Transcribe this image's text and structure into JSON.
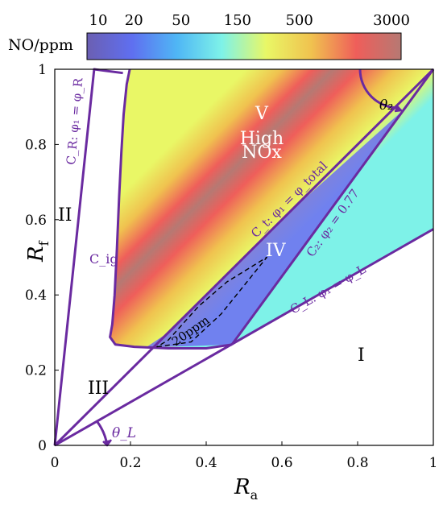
{
  "colors": {
    "boundary": "#6a2aa0",
    "colormap": [
      "#6b5fb2",
      "#5f6ff0",
      "#4fb6f5",
      "#7ef2e8",
      "#e9f766",
      "#f0c24f",
      "#ef5e5a",
      "#b67973"
    ]
  },
  "colorbar": {
    "label": "NO/ppm",
    "ticks": [
      10,
      20,
      50,
      150,
      500,
      3000
    ],
    "scale": "log"
  },
  "chart_data": {
    "type": "heatmap",
    "xlabel": "R",
    "xlabel_sub": "a",
    "ylabel": "R",
    "ylabel_sub": "f",
    "xlim": [
      0,
      1
    ],
    "ylim": [
      0,
      1
    ],
    "xticks": [
      0,
      0.2,
      0.4,
      0.6,
      0.8,
      1
    ],
    "yticks": [
      0,
      0.2,
      0.4,
      0.6,
      0.8,
      1
    ],
    "curves": {
      "C_R": [
        [
          0,
          0
        ],
        [
          0.104,
          1
        ],
        [
          0.18,
          0.99
        ]
      ],
      "C_L_slope": 0.575,
      "C_total_slope": 1,
      "C_2": [
        [
          0.468,
          0.268
        ],
        [
          1,
          1
        ]
      ],
      "C_ig": [
        [
          0.198,
          1
        ],
        [
          0.19,
          0.96
        ],
        [
          0.182,
          0.88
        ],
        [
          0.176,
          0.78
        ],
        [
          0.17,
          0.66
        ],
        [
          0.164,
          0.52
        ],
        [
          0.158,
          0.4
        ],
        [
          0.152,
          0.322
        ],
        [
          0.146,
          0.288
        ],
        [
          0.16,
          0.268
        ],
        [
          0.21,
          0.262
        ],
        [
          0.3,
          0.258
        ],
        [
          0.4,
          0.258
        ],
        [
          0.468,
          0.268
        ]
      ],
      "contour_20ppm": [
        [
          0.27,
          0.262
        ],
        [
          0.36,
          0.275
        ],
        [
          0.44,
          0.35
        ],
        [
          0.56,
          0.5
        ],
        [
          0.455,
          0.435
        ],
        [
          0.38,
          0.37
        ],
        [
          0.3,
          0.28
        ]
      ]
    },
    "annotations": {
      "region_I": "I",
      "region_II": "II",
      "region_III": "III",
      "region_IV": "IV",
      "region_V_1": "V",
      "region_V_2": "High",
      "region_V_3": "NOx",
      "label_CR": "C_R: φ₁ = φ_R",
      "label_Cig": "C_ig",
      "label_Ctotal": "C_t: φ₁ = φ_total",
      "label_C2": "C₂: φ₂ = 0.77",
      "label_CL": "C_L: φ₁ = φ_L",
      "label_20ppm": "20ppm",
      "theta_2": "θ₂",
      "theta_L": "θ_L"
    }
  }
}
